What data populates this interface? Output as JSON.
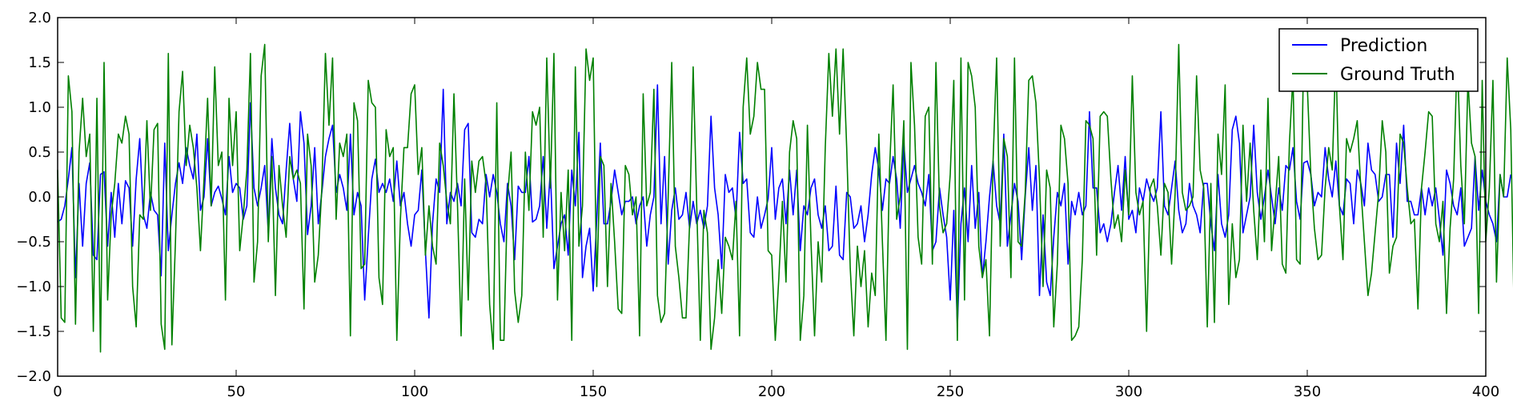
{
  "chart_data": {
    "type": "line",
    "title": "",
    "xlabel": "",
    "ylabel": "",
    "xlim": [
      0,
      400
    ],
    "ylim": [
      -2.0,
      2.0
    ],
    "xticks": [
      0,
      50,
      100,
      150,
      200,
      250,
      300,
      350,
      400
    ],
    "yticks": [
      -2.0,
      -1.5,
      -1.0,
      -0.5,
      0.0,
      0.5,
      1.0,
      1.5,
      2.0
    ],
    "ytick_labels": [
      "−2.0",
      "−1.5",
      "−1.0",
      "−0.5",
      "0.0",
      "0.5",
      "1.0",
      "1.5",
      "2.0"
    ],
    "grid": false,
    "legend_position": "top-right",
    "x": {
      "start": 0,
      "end": 400,
      "step": 1
    },
    "series": [
      {
        "name": "Prediction",
        "color": "#0000ff",
        "values": [
          -0.28,
          -0.25,
          -0.1,
          0.2,
          0.55,
          -0.9,
          0.15,
          -0.55,
          0.15,
          0.38,
          -0.65,
          -0.7,
          0.25,
          0.28,
          -0.55,
          0.05,
          -0.45,
          0.15,
          -0.3,
          0.18,
          0.1,
          -0.55,
          0.2,
          0.65,
          -0.2,
          -0.35,
          0.05,
          -0.15,
          -0.2,
          -0.88,
          0.6,
          -0.6,
          -0.2,
          0.15,
          0.38,
          0.15,
          0.55,
          0.35,
          0.2,
          0.7,
          -0.15,
          0.0,
          0.65,
          -0.1,
          0.05,
          0.12,
          -0.02,
          -0.2,
          0.45,
          0.05,
          0.15,
          0.1,
          -0.25,
          -0.1,
          1.05,
          0.1,
          -0.1,
          0.1,
          0.35,
          -0.4,
          0.65,
          0.1,
          -0.2,
          -0.3,
          0.3,
          0.82,
          0.2,
          -0.05,
          0.95,
          0.6,
          -0.42,
          -0.1,
          0.55,
          -0.3,
          0.05,
          0.45,
          0.65,
          0.8,
          0.05,
          0.25,
          0.1,
          -0.15,
          0.7,
          -0.2,
          0.05,
          -0.1,
          -1.15,
          -0.45,
          0.2,
          0.42,
          0.05,
          0.15,
          0.05,
          0.2,
          -0.05,
          0.4,
          -0.1,
          0.05,
          -0.3,
          -0.55,
          -0.2,
          -0.15,
          0.3,
          -0.6,
          -1.35,
          -0.3,
          0.2,
          0.05,
          1.2,
          -0.3,
          0.05,
          -0.05,
          0.15,
          -0.1,
          0.75,
          0.82,
          -0.4,
          -0.45,
          -0.25,
          -0.3,
          0.25,
          0.0,
          0.25,
          0.05,
          -0.3,
          -0.5,
          0.15,
          -0.1,
          -0.7,
          0.12,
          0.05,
          0.05,
          0.45,
          -0.28,
          -0.25,
          -0.1,
          0.45,
          -0.35,
          0.3,
          -0.8,
          -0.55,
          -0.3,
          -0.2,
          -0.65,
          0.3,
          -0.1,
          0.72,
          -0.9,
          -0.55,
          -0.35,
          -1.05,
          -0.25,
          0.6,
          -0.3,
          -0.3,
          -0.05,
          0.3,
          0.05,
          -0.2,
          -0.05,
          -0.05,
          0.0,
          -0.3,
          -0.1,
          0.0,
          -0.55,
          -0.2,
          0.0,
          1.25,
          -0.3,
          0.45,
          -0.75,
          -0.15,
          0.1,
          -0.25,
          -0.2,
          0.05,
          -0.35,
          -0.05,
          -0.3,
          -0.15,
          -0.35,
          -0.1,
          0.9,
          0.1,
          -0.2,
          -0.8,
          0.25,
          0.05,
          0.1,
          -0.25,
          0.72,
          0.15,
          0.2,
          -0.4,
          -0.45,
          0.0,
          -0.35,
          -0.2,
          -0.02,
          0.55,
          -0.25,
          0.1,
          0.2,
          -0.3,
          0.3,
          -0.2,
          0.3,
          -0.6,
          -0.1,
          -0.2,
          0.1,
          0.2,
          -0.2,
          -0.35,
          -0.1,
          -0.6,
          -0.55,
          0.12,
          -0.65,
          -0.7,
          0.05,
          0.0,
          -0.35,
          -0.3,
          -0.1,
          -0.5,
          -0.2,
          0.25,
          0.55,
          0.3,
          -0.15,
          0.2,
          0.15,
          0.45,
          0.2,
          -0.35,
          0.6,
          0.05,
          0.2,
          0.35,
          0.15,
          0.05,
          -0.1,
          0.25,
          -0.6,
          -0.5,
          0.1,
          -0.2,
          -0.45,
          -1.15,
          -0.15,
          -1.45,
          -0.3,
          0.1,
          -0.5,
          0.35,
          -0.35,
          0.05,
          -0.9,
          -0.5,
          0.0,
          0.4,
          -0.1,
          -0.3,
          0.7,
          -0.55,
          -0.2,
          0.15,
          -0.05,
          -0.7,
          0.0,
          0.55,
          -0.15,
          0.35,
          -1.1,
          -0.2,
          -0.95,
          -1.1,
          -0.45,
          0.05,
          -0.1,
          0.15,
          -0.75,
          -0.05,
          -0.2,
          0.05,
          -0.2,
          -0.1,
          0.95,
          0.1,
          0.1,
          -0.4,
          -0.3,
          -0.5,
          -0.3,
          0.05,
          0.35,
          -0.15,
          0.45,
          -0.25,
          -0.15,
          -0.4,
          0.1,
          -0.05,
          0.2,
          0.05,
          -0.05,
          0.1,
          0.95,
          -0.1,
          -0.2,
          0.1,
          0.4,
          -0.15,
          -0.4,
          -0.3,
          0.15,
          -0.1,
          -0.2,
          -0.4,
          0.15,
          0.15,
          -0.3,
          -0.6,
          0.25,
          -0.3,
          -0.45,
          -0.2,
          0.75,
          0.9,
          0.6,
          -0.4,
          -0.2,
          0.0,
          0.8,
          0.05,
          -0.25,
          0.0,
          0.3,
          0.0,
          -0.3,
          0.1,
          -0.15,
          0.35,
          0.3,
          0.55,
          -0.05,
          -0.25,
          0.38,
          0.4,
          0.25,
          -0.1,
          0.05,
          0.0,
          0.55,
          0.2,
          0.0,
          0.4,
          -0.1,
          -0.2,
          0.2,
          0.15,
          -0.3,
          0.3,
          0.15,
          -0.1,
          0.6,
          0.3,
          0.25,
          -0.05,
          0.0,
          0.25,
          0.25,
          -0.45,
          0.6,
          0.15,
          0.8,
          -0.05,
          -0.05,
          -0.2,
          -0.2,
          0.1,
          -0.2,
          0.1,
          -0.1,
          0.1,
          -0.25,
          -0.65,
          0.3,
          0.15,
          -0.1,
          -0.2,
          0.1,
          -0.55,
          -0.45,
          -0.35,
          0.45,
          -0.15,
          0.3,
          -0.05,
          -0.2,
          -0.3,
          -0.5,
          0.25,
          0.0,
          0.0,
          0.25
        ]
      },
      {
        "name": "Ground Truth",
        "color": "#008000",
        "values": [
          0.3,
          -1.35,
          -1.4,
          1.35,
          0.95,
          -1.42,
          0.5,
          1.1,
          0.45,
          0.7,
          -1.5,
          1.1,
          -1.73,
          1.5,
          -1.15,
          -0.2,
          0.15,
          0.7,
          0.6,
          0.9,
          0.7,
          -1.0,
          -1.45,
          -0.2,
          -0.25,
          0.85,
          -0.15,
          0.75,
          0.82,
          -1.42,
          -1.7,
          1.6,
          -1.65,
          -0.5,
          0.95,
          1.4,
          0.35,
          0.8,
          0.55,
          0.1,
          -0.6,
          0.2,
          1.1,
          -0.1,
          1.45,
          0.35,
          0.5,
          -1.15,
          1.1,
          0.35,
          0.95,
          -0.6,
          -0.2,
          0.3,
          1.6,
          -0.95,
          -0.5,
          1.35,
          1.7,
          -0.5,
          0.45,
          -1.1,
          0.35,
          -0.1,
          -0.45,
          0.45,
          0.2,
          0.3,
          0.15,
          -1.25,
          0.7,
          0.35,
          -0.95,
          -0.65,
          0.1,
          1.6,
          0.8,
          1.55,
          -0.25,
          0.6,
          0.45,
          0.7,
          -1.55,
          1.05,
          0.85,
          -0.8,
          -0.75,
          1.3,
          1.05,
          1.0,
          -0.9,
          -1.2,
          0.75,
          0.45,
          0.55,
          -1.6,
          -0.25,
          0.55,
          0.55,
          1.15,
          1.25,
          0.25,
          0.55,
          -0.65,
          -0.1,
          -0.55,
          -0.75,
          0.6,
          0.35,
          -0.05,
          -0.3,
          1.15,
          -0.1,
          -1.55,
          0.2,
          -1.15,
          0.4,
          0.05,
          0.4,
          0.45,
          0.15,
          -1.2,
          -1.7,
          1.05,
          -1.6,
          -1.6,
          0.0,
          0.5,
          -1.05,
          -1.4,
          -1.1,
          0.5,
          -0.15,
          0.95,
          0.8,
          1.0,
          -0.45,
          1.55,
          0.1,
          1.6,
          -1.15,
          0.05,
          -0.6,
          0.3,
          -1.6,
          1.45,
          -0.55,
          -0.1,
          1.65,
          1.3,
          1.55,
          -1.0,
          0.45,
          0.35,
          -1.0,
          0.15,
          -0.5,
          -1.25,
          -1.3,
          0.35,
          0.25,
          -0.2,
          0.0,
          -1.55,
          1.15,
          -0.1,
          0.05,
          1.2,
          -1.1,
          -1.4,
          -1.3,
          0.0,
          1.5,
          -0.55,
          -0.9,
          -1.35,
          -1.35,
          -0.3,
          1.45,
          -0.1,
          -1.6,
          -0.15,
          -0.4,
          -1.7,
          -1.35,
          -0.7,
          -1.3,
          -0.45,
          -0.55,
          -0.7,
          -0.05,
          -1.55,
          1.0,
          1.55,
          0.7,
          0.9,
          1.5,
          1.2,
          1.2,
          -0.6,
          -0.65,
          -1.6,
          -0.9,
          -0.05,
          -0.95,
          0.5,
          0.85,
          0.65,
          -1.6,
          -1.1,
          0.8,
          -0.5,
          -1.55,
          -0.5,
          -0.95,
          0.55,
          1.6,
          0.9,
          1.65,
          0.7,
          1.65,
          0.55,
          -0.8,
          -1.55,
          -0.55,
          -1.0,
          -0.6,
          -1.45,
          -0.85,
          -1.1,
          0.7,
          -0.5,
          -1.6,
          0.3,
          1.25,
          -0.25,
          0.0,
          0.85,
          -1.7,
          1.5,
          0.8,
          -0.45,
          -0.75,
          0.9,
          1.0,
          -0.75,
          1.5,
          -0.1,
          -0.4,
          -0.3,
          0.25,
          1.3,
          -1.6,
          1.55,
          -1.15,
          1.5,
          1.35,
          1.0,
          -0.55,
          -0.9,
          -0.7,
          -1.55,
          0.4,
          1.55,
          -0.55,
          0.65,
          0.45,
          -0.9,
          1.55,
          -0.5,
          -0.55,
          0.05,
          1.3,
          1.35,
          1.05,
          0.2,
          -1.0,
          0.3,
          0.1,
          -1.45,
          -0.75,
          0.8,
          0.65,
          0.15,
          -1.6,
          -1.55,
          -1.45,
          -0.7,
          0.85,
          0.8,
          0.65,
          -0.65,
          0.9,
          0.95,
          0.9,
          0.2,
          -0.35,
          -0.2,
          -0.5,
          0.3,
          -0.2,
          1.35,
          0.05,
          -0.2,
          -0.05,
          -1.5,
          0.1,
          0.2,
          -0.1,
          -0.65,
          0.15,
          0.05,
          -0.75,
          0.05,
          1.7,
          0.05,
          -0.15,
          -0.1,
          0.0,
          1.35,
          0.3,
          0.1,
          -1.45,
          0.15,
          -1.4,
          0.7,
          0.25,
          1.25,
          -1.2,
          -0.3,
          -0.9,
          -0.7,
          0.8,
          -0.05,
          0.6,
          -0.15,
          -0.7,
          0.3,
          -0.5,
          1.1,
          -0.6,
          -0.1,
          0.45,
          -0.75,
          -0.85,
          0.6,
          1.35,
          -0.7,
          -0.75,
          1.65,
          1.25,
          0.25,
          -0.35,
          -0.7,
          -0.65,
          0.1,
          0.55,
          0.3,
          1.6,
          -0.1,
          -0.7,
          0.65,
          0.5,
          0.65,
          0.85,
          0.1,
          -0.5,
          -1.1,
          -0.85,
          -0.4,
          0.05,
          0.85,
          0.5,
          -0.85,
          -0.55,
          -0.45,
          0.7,
          0.6,
          0.1,
          -0.3,
          -0.25,
          -1.25,
          0.1,
          0.5,
          0.95,
          0.9,
          -0.3,
          -0.5,
          -0.05,
          -1.3,
          -0.35,
          0.2,
          1.6,
          0.35,
          -0.3,
          1.3,
          0.6,
          0.45,
          -1.3,
          1.3,
          -0.5,
          0.1,
          1.3,
          -0.95,
          0.25,
          0.0,
          1.55,
          0.75,
          -1.45,
          0.6,
          -0.35,
          1.45,
          0.35,
          -1.25,
          -0.4,
          1.0,
          -0.4,
          1.55,
          -0.85,
          -0.55,
          0.1,
          0.85,
          0.65,
          0.5,
          0.35,
          -1.5,
          -0.95,
          -1.7,
          -1.05,
          -1.25,
          -0.6,
          1.45,
          0.75,
          0.3,
          -1.0,
          -1.5,
          -0.65,
          0.45,
          -1.0,
          0.55
        ]
      }
    ]
  }
}
